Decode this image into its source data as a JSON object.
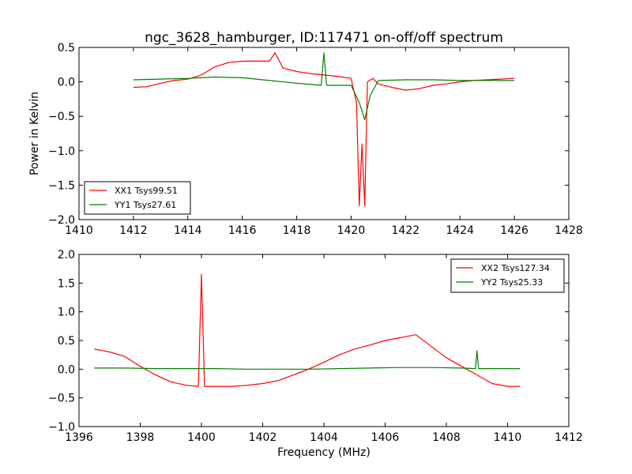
{
  "title": "ngc_3628_hamburger, ID:117471 on-off/off spectrum",
  "chart_data": [
    {
      "type": "line",
      "xlabel": "",
      "ylabel": "Power in Kelvin",
      "xlim": [
        1410,
        1428
      ],
      "ylim": [
        -2.0,
        0.5
      ],
      "xticks": [
        "1410",
        "1412",
        "1414",
        "1416",
        "1418",
        "1420",
        "1422",
        "1424",
        "1426",
        "1428"
      ],
      "yticks": [
        "0.5",
        "0.0",
        "−0.5",
        "−1.0",
        "−1.5",
        "−2.0"
      ],
      "legend_position": "lower-left",
      "grid": false,
      "series": [
        {
          "name": "XX1 Tsys99.51",
          "color": "#ff0000",
          "x": [
            1412.0,
            1412.5,
            1413.0,
            1413.5,
            1414.0,
            1414.5,
            1415.0,
            1415.5,
            1416.0,
            1416.5,
            1417.0,
            1417.2,
            1417.5,
            1418.0,
            1418.5,
            1419.0,
            1419.5,
            1420.0,
            1420.2,
            1420.3,
            1420.4,
            1420.5,
            1420.6,
            1420.8,
            1421.0,
            1421.5,
            1422.0,
            1422.5,
            1423.0,
            1423.5,
            1424.0,
            1424.5,
            1425.0,
            1425.5,
            1426.0
          ],
          "y": [
            -0.08,
            -0.07,
            -0.02,
            0.02,
            0.04,
            0.1,
            0.22,
            0.28,
            0.3,
            0.3,
            0.3,
            0.42,
            0.2,
            0.15,
            0.12,
            0.1,
            0.08,
            0.05,
            -0.3,
            -1.8,
            -0.9,
            -1.8,
            0.0,
            0.05,
            -0.03,
            -0.08,
            -0.12,
            -0.1,
            -0.05,
            -0.03,
            0.0,
            0.02,
            0.03,
            0.04,
            0.05
          ]
        },
        {
          "name": "YY1 Tsys27.61",
          "color": "#008000",
          "x": [
            1412.0,
            1413.0,
            1414.0,
            1415.0,
            1416.0,
            1417.0,
            1418.0,
            1418.9,
            1419.0,
            1419.1,
            1420.0,
            1420.3,
            1420.5,
            1420.7,
            1421.0,
            1422.0,
            1423.0,
            1424.0,
            1425.0,
            1426.0
          ],
          "y": [
            0.03,
            0.04,
            0.05,
            0.07,
            0.06,
            0.02,
            -0.02,
            -0.05,
            0.42,
            -0.05,
            -0.05,
            -0.3,
            -0.55,
            -0.2,
            0.02,
            0.03,
            0.03,
            0.02,
            0.02,
            0.02
          ]
        }
      ]
    },
    {
      "type": "line",
      "xlabel": "Frequency (MHz)",
      "ylabel": "",
      "xlim": [
        1396,
        1412
      ],
      "ylim": [
        -1.0,
        2.0
      ],
      "xticks": [
        "1396",
        "1398",
        "1400",
        "1402",
        "1404",
        "1406",
        "1408",
        "1410",
        "1412"
      ],
      "yticks": [
        "2.0",
        "1.5",
        "1.0",
        "0.5",
        "0.0",
        "−0.5",
        "−1.0"
      ],
      "legend_position": "top-right",
      "grid": false,
      "series": [
        {
          "name": "XX2 Tsys127.34",
          "color": "#ff0000",
          "x": [
            1396.5,
            1397.0,
            1397.5,
            1398.0,
            1398.5,
            1399.0,
            1399.5,
            1399.9,
            1400.0,
            1400.1,
            1400.5,
            1401.0,
            1401.5,
            1402.0,
            1402.5,
            1403.0,
            1403.5,
            1404.0,
            1404.5,
            1405.0,
            1405.5,
            1406.0,
            1406.5,
            1407.0,
            1407.5,
            1408.0,
            1408.5,
            1409.0,
            1409.5,
            1410.0,
            1410.4
          ],
          "y": [
            0.35,
            0.3,
            0.22,
            0.05,
            -0.1,
            -0.22,
            -0.28,
            -0.3,
            1.65,
            -0.3,
            -0.3,
            -0.3,
            -0.28,
            -0.25,
            -0.2,
            -0.1,
            0.0,
            0.12,
            0.25,
            0.35,
            0.42,
            0.5,
            0.55,
            0.6,
            0.4,
            0.2,
            0.05,
            -0.1,
            -0.25,
            -0.3,
            -0.3
          ]
        },
        {
          "name": "YY2 Tsys25.33",
          "color": "#008000",
          "x": [
            1396.5,
            1397.5,
            1398.5,
            1399.5,
            1400.5,
            1401.5,
            1402.5,
            1403.5,
            1404.5,
            1405.5,
            1406.5,
            1407.5,
            1408.5,
            1408.95,
            1409.0,
            1409.05,
            1409.5,
            1410.4
          ],
          "y": [
            0.02,
            0.02,
            0.01,
            0.01,
            0.01,
            0.0,
            0.0,
            0.0,
            0.01,
            0.02,
            0.03,
            0.03,
            0.02,
            0.01,
            0.32,
            0.01,
            0.01,
            0.01
          ]
        }
      ]
    }
  ]
}
